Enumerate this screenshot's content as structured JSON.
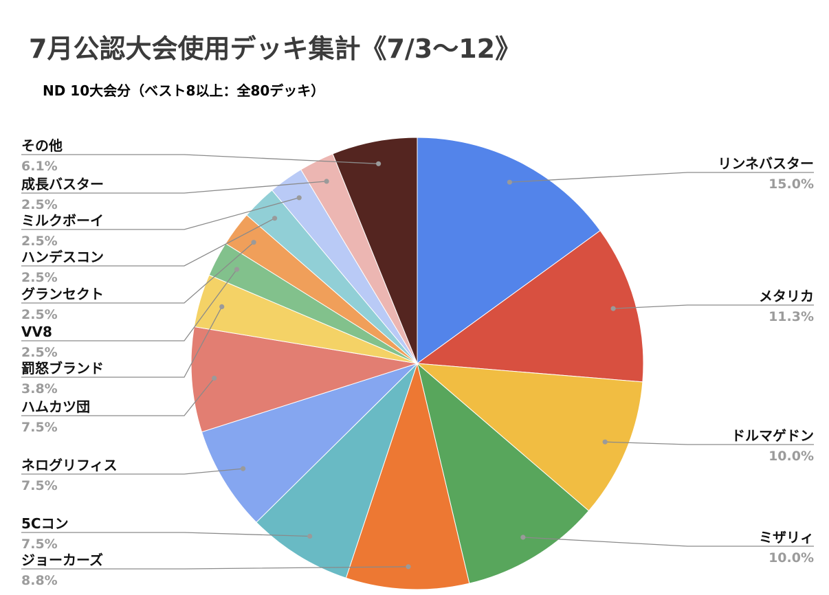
{
  "chart_data": {
    "type": "pie",
    "title": "7月公認大会使用デッキ集計《7/3〜12》",
    "subtitle": "ND 10大会分（ベスト8以上：全80デッキ）",
    "slices": [
      {
        "label": "リンネバスター",
        "value": 15.0,
        "pct_label": "15.0%",
        "color": "#5384ea"
      },
      {
        "label": "メタリカ",
        "value": 11.3,
        "pct_label": "11.3%",
        "color": "#d85040"
      },
      {
        "label": "ドルマゲドン",
        "value": 10.0,
        "pct_label": "10.0%",
        "color": "#f1bd42"
      },
      {
        "label": "ミザリィ",
        "value": 10.0,
        "pct_label": "10.0%",
        "color": "#58a65c"
      },
      {
        "label": "ジョーカーズ",
        "value": 8.8,
        "pct_label": "8.8%",
        "color": "#ed7833"
      },
      {
        "label": "5Cコン",
        "value": 7.5,
        "pct_label": "7.5%",
        "color": "#69bac4"
      },
      {
        "label": "ネログリフィス",
        "value": 7.5,
        "pct_label": "7.5%",
        "color": "#85a6f0"
      },
      {
        "label": "ハムカツ団",
        "value": 7.5,
        "pct_label": "7.5%",
        "color": "#e27e72"
      },
      {
        "label": "罰怒ブランド",
        "value": 3.8,
        "pct_label": "3.8%",
        "color": "#f4d266"
      },
      {
        "label": "VV8",
        "value": 2.5,
        "pct_label": "2.5%",
        "color": "#82c18c"
      },
      {
        "label": "グランセクト",
        "value": 2.5,
        "pct_label": "2.5%",
        "color": "#f09f5a"
      },
      {
        "label": "ハンデスコン",
        "value": 2.5,
        "pct_label": "2.5%",
        "color": "#91cfd6"
      },
      {
        "label": "ミルクボーイ",
        "value": 2.5,
        "pct_label": "2.5%",
        "color": "#b9caf6"
      },
      {
        "label": "成長バスター",
        "value": 2.5,
        "pct_label": "2.5%",
        "color": "#ecb6b2"
      },
      {
        "label": "その他",
        "value": 6.1,
        "pct_label": "6.1%",
        "color": "#542520"
      }
    ],
    "legend": "none"
  }
}
